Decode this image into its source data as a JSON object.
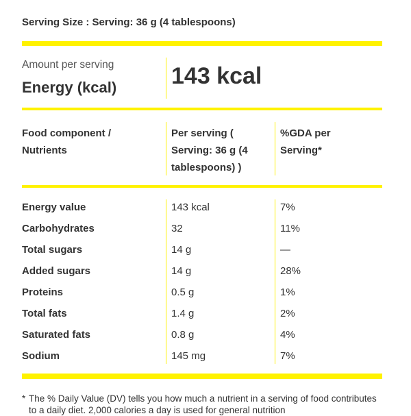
{
  "serving_size": "Serving Size : Serving: 36 g (4 tablespoons)",
  "amount_label": "Amount per serving",
  "energy_label": "Energy (kcal)",
  "energy_value": "143 kcal",
  "table": {
    "headers": [
      "Food component / Nutrients",
      "Per serving ( Serving: 36 g (4 tablespoons) )",
      "%GDA per Serving*"
    ],
    "rows": [
      {
        "name": "Energy value",
        "per_serving": "143 kcal",
        "gda": "7%"
      },
      {
        "name": "Carbohydrates",
        "per_serving": "32",
        "gda": "11%"
      },
      {
        "name": "Total sugars",
        "per_serving": "14 g",
        "gda": "—"
      },
      {
        "name": "Added sugars",
        "per_serving": "14 g",
        "gda": "28%"
      },
      {
        "name": "Proteins",
        "per_serving": "0.5 g",
        "gda": "1%"
      },
      {
        "name": "Total fats",
        "per_serving": "1.4 g",
        "gda": "2%"
      },
      {
        "name": "Saturated fats",
        "per_serving": "0.8 g",
        "gda": "4%"
      },
      {
        "name": "Sodium",
        "per_serving": "145 mg",
        "gda": "7%"
      }
    ]
  },
  "footnote": {
    "marker": "*",
    "text": "The % Daily Value (DV) tells you how much a nutrient in a serving of food contributes to a daily diet. 2,000 calories a day is used for general nutrition"
  },
  "colors": {
    "accent": "#fff200",
    "text": "#333333"
  }
}
